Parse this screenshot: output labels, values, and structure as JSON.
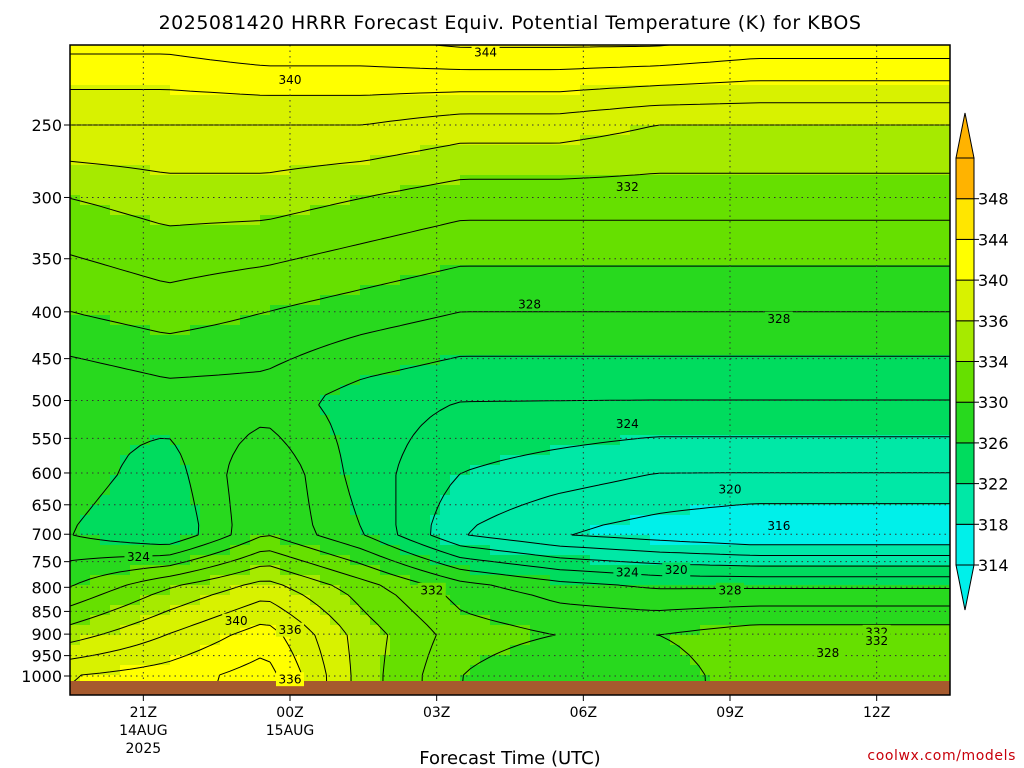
{
  "chart_data": {
    "type": "heatmap",
    "title": "2025081420 HRRR Forecast Equiv. Potential Temperature (K) for KBOS",
    "xlabel": "Forecast Time (UTC)",
    "ylabel": "",
    "y_levels_hPa": [
      250,
      300,
      350,
      400,
      450,
      500,
      550,
      600,
      650,
      700,
      750,
      800,
      850,
      900,
      950,
      1000
    ],
    "y_axis_scale": "log-pressure",
    "ylim": [
      1000,
      200
    ],
    "xlim_hours": [
      -3.5,
      14.5
    ],
    "x_ticks": [
      {
        "hour": -2,
        "label": "21Z",
        "sub1": "14AUG",
        "sub2": "2025"
      },
      {
        "hour": 1,
        "label": "00Z",
        "sub1": "15AUG",
        "sub2": ""
      },
      {
        "hour": 4,
        "label": "03Z",
        "sub1": "",
        "sub2": ""
      },
      {
        "hour": 7,
        "label": "06Z",
        "sub1": "",
        "sub2": ""
      },
      {
        "hour": 10,
        "label": "09Z",
        "sub1": "",
        "sub2": ""
      },
      {
        "hour": 13,
        "label": "12Z",
        "sub1": "",
        "sub2": ""
      }
    ],
    "grid": "dotted",
    "colorbar": {
      "levels": [
        314,
        318,
        322,
        326,
        330,
        334,
        336,
        340,
        344,
        348
      ],
      "labels": [
        "314",
        "318",
        "322",
        "326",
        "330",
        "334",
        "336",
        "340",
        "344",
        "348"
      ],
      "colors": [
        "#00f0ea",
        "#00e8a6",
        "#00dc5e",
        "#28d91e",
        "#66e000",
        "#a6ea00",
        "#d8f200",
        "#ffff00",
        "#ffe600",
        "#ffb300"
      ],
      "extend": "both"
    },
    "contour_labels": [
      {
        "hour": 5.0,
        "hPa": 208,
        "value": "344"
      },
      {
        "hour": 1.0,
        "hPa": 223,
        "value": "340"
      },
      {
        "hour": 7.9,
        "hPa": 292,
        "value": "332"
      },
      {
        "hour": 5.9,
        "hPa": 392,
        "value": "328"
      },
      {
        "hour": 11.0,
        "hPa": 407,
        "value": "328"
      },
      {
        "hour": 7.9,
        "hPa": 530,
        "value": "324"
      },
      {
        "hour": 10.0,
        "hPa": 625,
        "value": "320"
      },
      {
        "hour": 11.0,
        "hPa": 685,
        "value": "316"
      },
      {
        "hour": -2.1,
        "hPa": 740,
        "value": "324"
      },
      {
        "hour": 7.9,
        "hPa": 770,
        "value": "324"
      },
      {
        "hour": 8.9,
        "hPa": 765,
        "value": "320"
      },
      {
        "hour": 10.0,
        "hPa": 805,
        "value": "328"
      },
      {
        "hour": 3.9,
        "hPa": 805,
        "value": "332"
      },
      {
        "hour": -0.1,
        "hPa": 870,
        "value": "340"
      },
      {
        "hour": 1.0,
        "hPa": 890,
        "value": "336"
      },
      {
        "hour": 13.0,
        "hPa": 895,
        "value": "332"
      },
      {
        "hour": 13.0,
        "hPa": 915,
        "value": "332"
      },
      {
        "hour": 12.0,
        "hPa": 943,
        "value": "328"
      },
      {
        "hour": 1.0,
        "hPa": 1008,
        "value": "336"
      }
    ],
    "field": [
      {
        "hPa": 200,
        "values": [
          343,
          343,
          344,
          344,
          345,
          345,
          345,
          344,
          344,
          344
        ]
      },
      {
        "hPa": 250,
        "values": [
          338,
          338,
          338,
          338,
          337,
          337,
          336,
          336,
          336,
          336
        ]
      },
      {
        "hPa": 300,
        "values": [
          334,
          335,
          335,
          334,
          333,
          333,
          333,
          333,
          333,
          333
        ]
      },
      {
        "hPa": 400,
        "values": [
          330,
          331,
          330,
          329,
          328,
          328,
          328,
          328,
          328,
          328
        ]
      },
      {
        "hPa": 500,
        "values": [
          326,
          327,
          327,
          325,
          324,
          324,
          324,
          324,
          324,
          324
        ]
      },
      {
        "hPa": 600,
        "values": [
          327,
          325,
          330,
          325,
          322,
          321,
          320,
          320,
          320,
          320
        ]
      },
      {
        "hPa": 700,
        "values": [
          326,
          324,
          330,
          326,
          320,
          318,
          317,
          316,
          316,
          316
        ]
      },
      {
        "hPa": 800,
        "values": [
          330,
          334,
          337,
          333,
          329,
          327,
          326,
          326,
          326,
          326
        ]
      },
      {
        "hPa": 900,
        "values": [
          335,
          338,
          341,
          335,
          331,
          330,
          330,
          331,
          331,
          331
        ]
      },
      {
        "hPa": 1000,
        "values": [
          340,
          341,
          343,
          335,
          330,
          328,
          329,
          331,
          330,
          330
        ]
      }
    ],
    "field_hours": [
      -3.5,
      -1.5,
      0.5,
      2.5,
      4.5,
      6.5,
      8.5,
      10.5,
      12.5,
      14.5
    ]
  },
  "credit": "coolwx.com/models",
  "ground_color": "#a65a2e"
}
